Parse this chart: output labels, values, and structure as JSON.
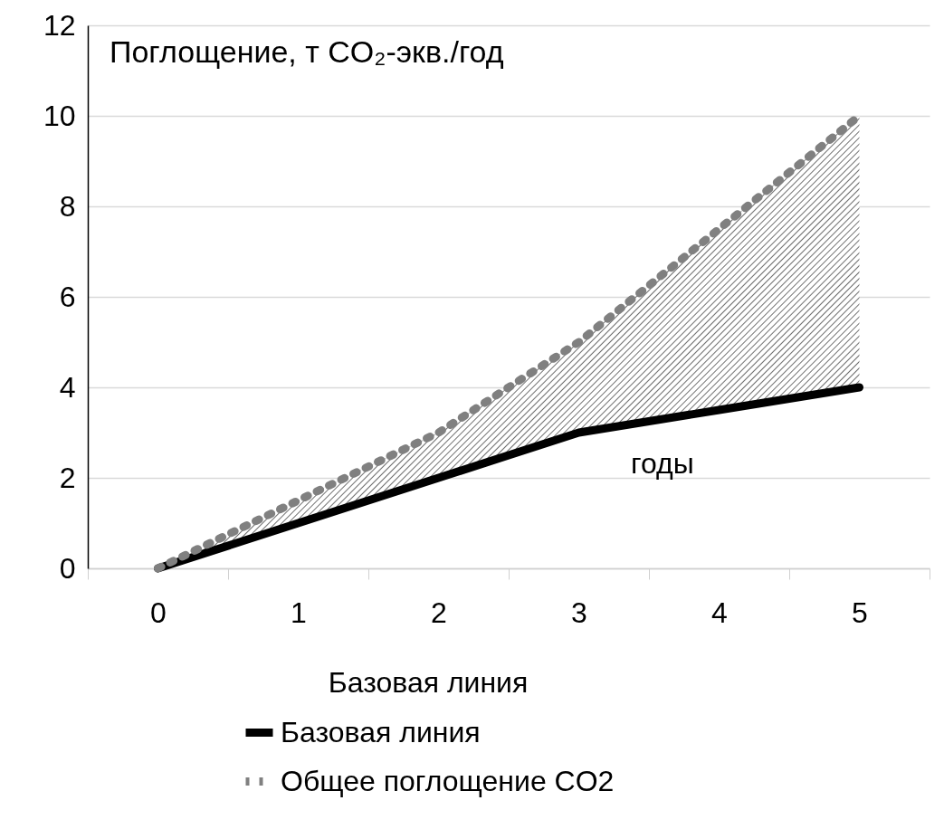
{
  "chart_data": {
    "type": "line",
    "ylabel": "Поглощение, т CO₂-экв./год",
    "legend_title": "Базовая линия",
    "categories": [
      "0",
      "1",
      "2",
      "3",
      "4",
      "5"
    ],
    "series": [
      {
        "name": "Базовая линия",
        "color": "#000000",
        "line_style": "solid",
        "values": [
          0,
          1,
          2,
          3,
          3.5,
          4
        ]
      },
      {
        "name": "Общее поглощение CO2",
        "color": "#808080",
        "line_style": "dotted",
        "values": [
          0,
          1.5,
          3,
          5,
          7.5,
          10
        ],
        "lower": [
          0,
          1,
          2,
          3,
          3.5,
          4
        ],
        "upper": [
          0,
          1.5,
          3,
          5,
          7.5,
          10
        ]
      }
    ],
    "ylim": [
      0,
      12
    ],
    "yticks": [
      0,
      2,
      4,
      6,
      8,
      10,
      12
    ],
    "grid": "y",
    "legend": "bottom",
    "marker": "none",
    "annotations": [
      "годы"
    ]
  }
}
